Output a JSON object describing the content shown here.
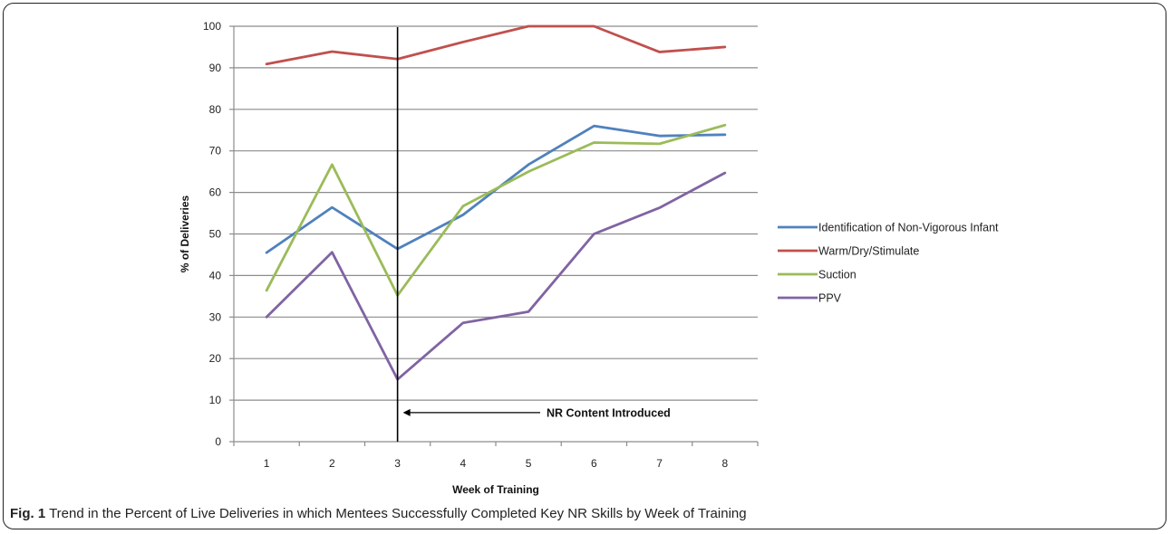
{
  "chart_data": {
    "type": "line",
    "xlabel": "Week of Training",
    "ylabel": "% of Deliveries",
    "ylim": [
      0,
      100
    ],
    "yticks": [
      0,
      10,
      20,
      30,
      40,
      50,
      60,
      70,
      80,
      90,
      100
    ],
    "categories": [
      "1",
      "2",
      "3",
      "4",
      "5",
      "6",
      "7",
      "8"
    ],
    "grid": "horizontal",
    "legend_position": "right",
    "series": [
      {
        "name": "Identification of Non-Vigorous Infant",
        "color": "#4f81bd",
        "values": [
          45.5,
          56.4,
          46.4,
          54.6,
          66.7,
          76.0,
          73.6,
          73.9
        ]
      },
      {
        "name": "Warm/Dry/Stimulate",
        "color": "#c0504d",
        "values": [
          90.9,
          93.9,
          92.1,
          96.2,
          100,
          100,
          93.8,
          95.0
        ]
      },
      {
        "name": "Suction",
        "color": "#9bbb59",
        "values": [
          36.4,
          66.7,
          35.2,
          56.7,
          65.0,
          72.0,
          71.7,
          76.2
        ]
      },
      {
        "name": "PPV",
        "color": "#8064a2",
        "values": [
          30.0,
          45.6,
          15.0,
          28.6,
          31.3,
          50.0,
          56.3,
          64.7
        ]
      }
    ],
    "annotation": {
      "text": "NR Content Introduced",
      "at_week": "3"
    }
  },
  "caption": {
    "label": "Fig. 1",
    "text": "Trend in the Percent of Live Deliveries in which Mentees Successfully Completed Key NR Skills by Week of Training"
  }
}
